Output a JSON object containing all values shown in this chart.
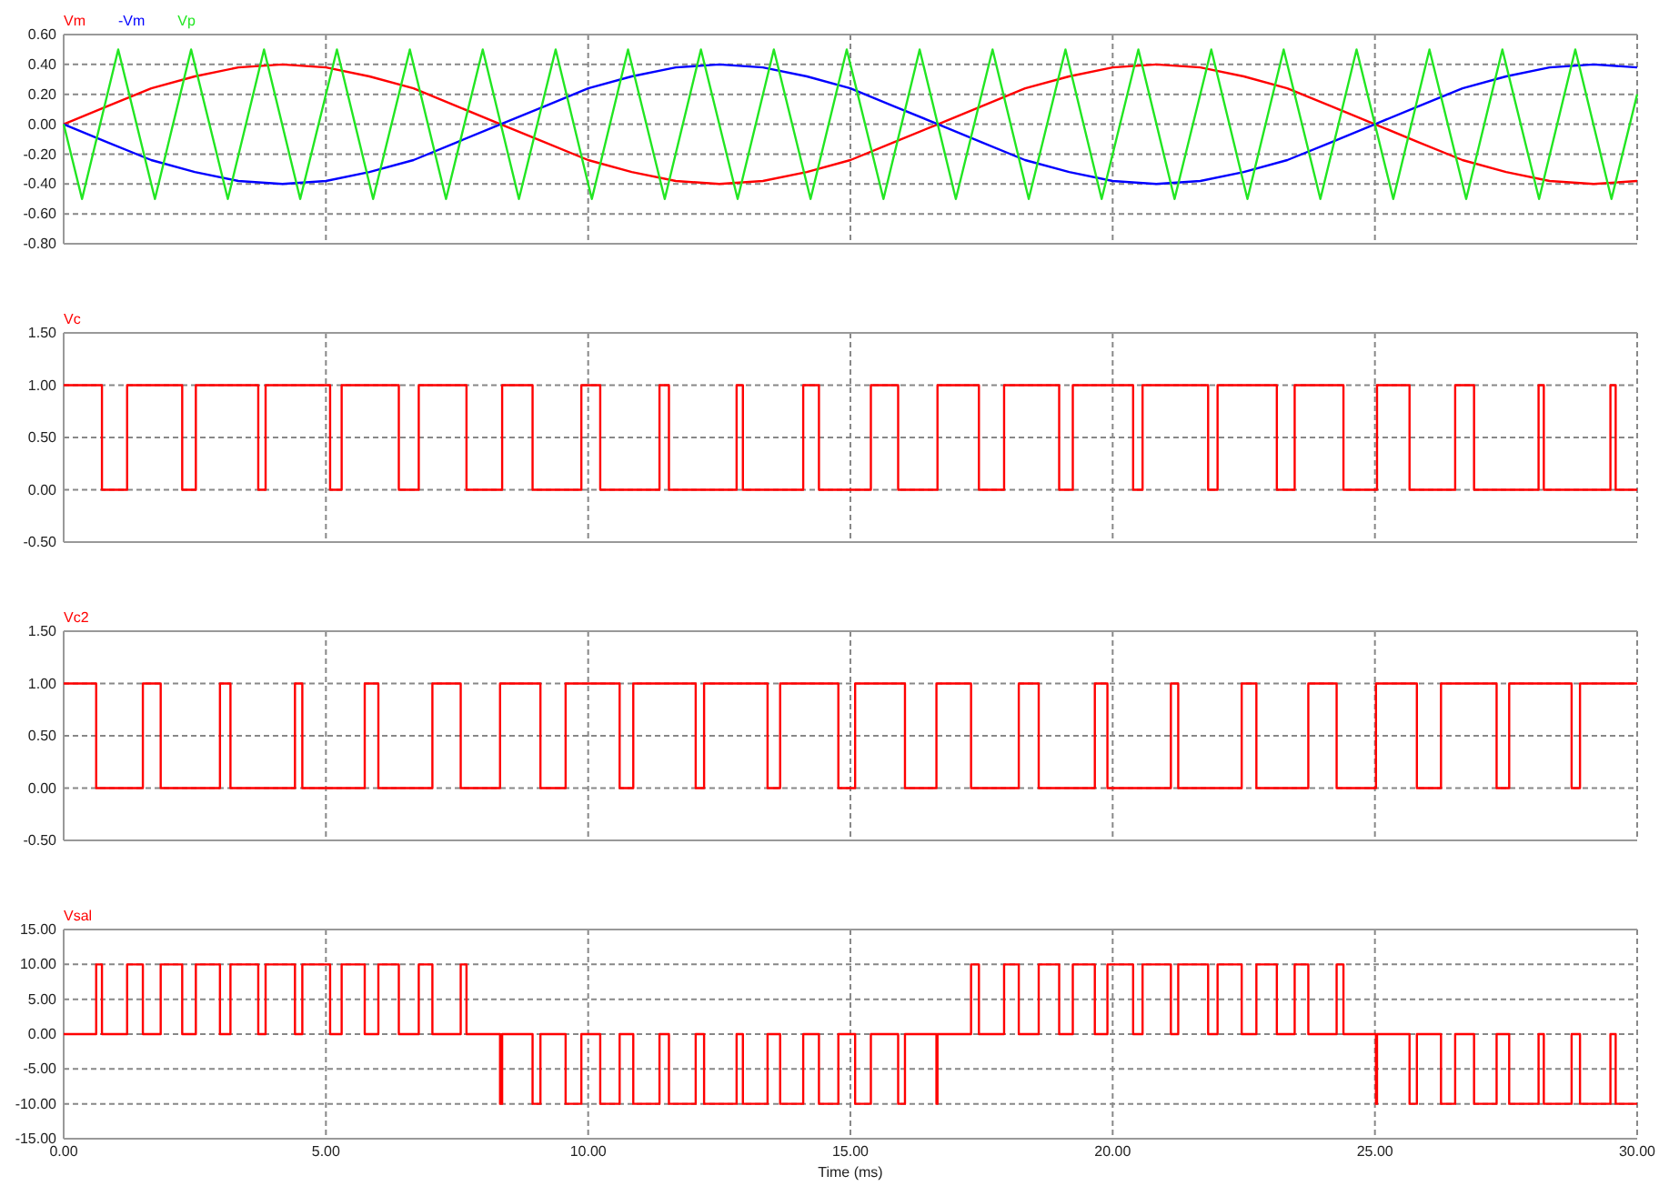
{
  "chart_data": [
    {
      "type": "line",
      "legend": "top left",
      "grid": true,
      "tick_labels": "y",
      "xlim": [
        0,
        30
      ],
      "xticks": [
        0,
        5,
        10,
        15,
        20,
        25,
        30
      ],
      "ylim": [
        -0.8,
        0.6
      ],
      "yticks": [
        {
          "value": -0.8,
          "label": "-0.80"
        },
        {
          "value": -0.6,
          "label": "-0.60"
        },
        {
          "value": -0.4,
          "label": "-0.40"
        },
        {
          "value": -0.2,
          "label": "-0.20"
        },
        {
          "value": 0,
          "label": "0.00"
        },
        {
          "value": 0.2,
          "label": "0.20"
        },
        {
          "value": 0.4,
          "label": "0.40"
        },
        {
          "value": 0.6,
          "label": "0.60"
        }
      ],
      "series": [
        {
          "name": "Vm",
          "color": "#ff0000",
          "x": [
            0,
            0.83,
            1.67,
            2.5,
            3.33,
            4.17,
            5,
            5.83,
            6.67,
            7.5,
            8.33,
            9.17,
            10,
            10.83,
            11.67,
            12.5,
            13.33,
            14.17,
            15,
            15.83,
            16.67,
            17.5,
            18.33,
            19.17,
            20,
            20.83,
            21.67,
            22.5,
            23.33,
            24.17,
            25,
            25.83,
            26.67,
            27.5,
            28.33,
            29.17,
            30
          ],
          "values": [
            0,
            0.12,
            0.24,
            0.32,
            0.38,
            0.4,
            0.38,
            0.32,
            0.24,
            0.12,
            0,
            -0.12,
            -0.24,
            -0.32,
            -0.38,
            -0.4,
            -0.38,
            -0.32,
            -0.24,
            -0.12,
            0,
            0.12,
            0.24,
            0.32,
            0.38,
            0.4,
            0.38,
            0.32,
            0.24,
            0.12,
            0,
            -0.12,
            -0.24,
            -0.32,
            -0.38,
            -0.4,
            -0.38
          ]
        },
        {
          "name": "-Vm",
          "color": "#0000ff",
          "x": [
            0,
            0.83,
            1.67,
            2.5,
            3.33,
            4.17,
            5,
            5.83,
            6.67,
            7.5,
            8.33,
            9.17,
            10,
            10.83,
            11.67,
            12.5,
            13.33,
            14.17,
            15,
            15.83,
            16.67,
            17.5,
            18.33,
            19.17,
            20,
            20.83,
            21.67,
            22.5,
            23.33,
            24.17,
            25,
            25.83,
            26.67,
            27.5,
            28.33,
            29.17,
            30
          ],
          "values": [
            0,
            -0.12,
            -0.24,
            -0.32,
            -0.38,
            -0.4,
            -0.38,
            -0.32,
            -0.24,
            -0.12,
            0,
            0.12,
            0.24,
            0.32,
            0.38,
            0.4,
            0.38,
            0.32,
            0.24,
            0.12,
            0,
            -0.12,
            -0.24,
            -0.32,
            -0.38,
            -0.4,
            -0.38,
            -0.32,
            -0.24,
            -0.12,
            0,
            0.12,
            0.24,
            0.32,
            0.38,
            0.4,
            0.38
          ]
        },
        {
          "name": "Vp",
          "color": "#22e622",
          "x": [
            0,
            0.35,
            1.04,
            1.74,
            2.43,
            3.13,
            3.82,
            4.51,
            5.21,
            5.9,
            6.6,
            7.29,
            7.99,
            8.68,
            9.38,
            10.07,
            10.76,
            11.46,
            12.15,
            12.85,
            13.54,
            14.24,
            14.93,
            15.63,
            16.32,
            17.01,
            17.71,
            18.4,
            19.1,
            19.79,
            20.49,
            21.18,
            21.88,
            22.57,
            23.26,
            23.96,
            24.65,
            25.35,
            26.04,
            26.74,
            27.43,
            28.13,
            28.82,
            29.51,
            30
          ],
          "values": [
            0,
            -0.5,
            0.5,
            -0.5,
            0.5,
            -0.5,
            0.5,
            -0.5,
            0.5,
            -0.5,
            0.5,
            -0.5,
            0.5,
            -0.5,
            0.5,
            -0.5,
            0.5,
            -0.5,
            0.5,
            -0.5,
            0.5,
            -0.5,
            0.5,
            -0.5,
            0.5,
            -0.5,
            0.5,
            -0.5,
            0.5,
            -0.5,
            0.5,
            -0.5,
            0.5,
            -0.5,
            0.5,
            -0.5,
            0.5,
            -0.5,
            0.5,
            -0.5,
            0.5,
            -0.5,
            0.5,
            -0.5,
            0.2
          ]
        }
      ]
    },
    {
      "type": "step",
      "legend": "top left",
      "grid": true,
      "tick_labels": "y",
      "xlim": [
        0,
        30
      ],
      "xticks": [
        0,
        5,
        10,
        15,
        20,
        25,
        30
      ],
      "ylim": [
        -0.5,
        1.5
      ],
      "yticks": [
        {
          "value": -0.5,
          "label": "-0.50"
        },
        {
          "value": 0,
          "label": "0.00"
        },
        {
          "value": 0.5,
          "label": "0.50"
        },
        {
          "value": 1,
          "label": "1.00"
        },
        {
          "value": 1.5,
          "label": "1.50"
        }
      ],
      "series": [
        {
          "name": "Vc",
          "color": "#ff0000",
          "x": [
            0,
            0.73,
            1.21,
            2.26,
            2.52,
            3.71,
            3.85,
            5.08,
            5.3,
            6.39,
            6.77,
            7.68,
            8.36,
            8.94,
            9.87,
            10.23,
            11.36,
            11.54,
            12.83,
            12.95,
            14.1,
            14.4,
            15.39,
            15.91,
            16.66,
            17.45,
            17.93,
            18.98,
            19.24,
            20.39,
            20.57,
            21.82,
            22,
            23.13,
            23.47,
            24.4,
            25.04,
            25.66,
            26.53,
            26.89,
            28.12,
            28.22,
            29.49,
            29.59,
            30
          ],
          "values": [
            1,
            0,
            1,
            0,
            1,
            0,
            1,
            0,
            1,
            0,
            1,
            0,
            1,
            0,
            1,
            0,
            1,
            0,
            1,
            0,
            1,
            0,
            1,
            0,
            1,
            0,
            1,
            0,
            1,
            0,
            1,
            0,
            1,
            0,
            1,
            0,
            1,
            0,
            1,
            0,
            1,
            0,
            1,
            0,
            0
          ]
        }
      ]
    },
    {
      "type": "step",
      "legend": "top left",
      "grid": true,
      "tick_labels": "y",
      "xlim": [
        0,
        30
      ],
      "xticks": [
        0,
        5,
        10,
        15,
        20,
        25,
        30
      ],
      "ylim": [
        -0.5,
        1.5
      ],
      "yticks": [
        {
          "value": -0.5,
          "label": "-0.50"
        },
        {
          "value": 0,
          "label": "0.00"
        },
        {
          "value": 0.5,
          "label": "0.50"
        },
        {
          "value": 1,
          "label": "1.00"
        },
        {
          "value": 1.5,
          "label": "1.50"
        }
      ],
      "series": [
        {
          "name": "Vc2",
          "color": "#ff0000",
          "x": [
            0,
            0.62,
            1.51,
            1.85,
            2.98,
            3.18,
            4.41,
            4.55,
            5.74,
            6,
            7.03,
            7.57,
            8.32,
            9.09,
            9.57,
            10.6,
            10.86,
            12.05,
            12.21,
            13.42,
            13.66,
            14.77,
            15.09,
            16.04,
            16.64,
            17.3,
            18.21,
            18.59,
            19.66,
            19.9,
            21.11,
            21.25,
            22.46,
            22.74,
            23.73,
            24.27,
            25.02,
            25.8,
            26.26,
            27.32,
            27.56,
            28.75,
            28.91,
            30
          ],
          "values": [
            1,
            0,
            1,
            0,
            1,
            0,
            1,
            0,
            1,
            0,
            1,
            0,
            1,
            0,
            1,
            0,
            1,
            0,
            1,
            0,
            1,
            0,
            1,
            0,
            1,
            0,
            1,
            0,
            1,
            0,
            1,
            0,
            1,
            0,
            1,
            0,
            1,
            0,
            1,
            0,
            1,
            0,
            1,
            1
          ]
        }
      ]
    },
    {
      "type": "step",
      "legend": "top left",
      "grid": true,
      "xlabel": "Time (ms)",
      "xlim": [
        0,
        30
      ],
      "xticks": [
        {
          "value": 0,
          "label": "0.00"
        },
        {
          "value": 5,
          "label": "5.00"
        },
        {
          "value": 10,
          "label": "10.00"
        },
        {
          "value": 15,
          "label": "15.00"
        },
        {
          "value": 20,
          "label": "20.00"
        },
        {
          "value": 25,
          "label": "25.00"
        },
        {
          "value": 30,
          "label": "30.00"
        }
      ],
      "ylim": [
        -15,
        15
      ],
      "yticks": [
        {
          "value": -15,
          "label": "-15.00"
        },
        {
          "value": -10,
          "label": "-10.00"
        },
        {
          "value": -5,
          "label": "-5.00"
        },
        {
          "value": 0,
          "label": "0.00"
        },
        {
          "value": 5,
          "label": "5.00"
        },
        {
          "value": 10,
          "label": "10.00"
        },
        {
          "value": 15,
          "label": "15.00"
        }
      ],
      "series": [
        {
          "name": "Vsal",
          "color": "#ff0000",
          "x": [
            0,
            0.62,
            0.73,
            1.21,
            1.51,
            1.85,
            2.26,
            2.52,
            2.98,
            3.18,
            3.71,
            3.85,
            4.41,
            4.55,
            5.08,
            5.3,
            5.74,
            6,
            6.39,
            6.77,
            7.03,
            7.57,
            7.68,
            8.32,
            8.36,
            8.94,
            9.09,
            9.57,
            9.87,
            10.23,
            10.6,
            10.86,
            11.36,
            11.54,
            12.05,
            12.21,
            12.83,
            12.95,
            13.42,
            13.66,
            14.1,
            14.4,
            14.77,
            15.09,
            15.39,
            15.91,
            16.04,
            16.64,
            16.66,
            17.3,
            17.45,
            17.93,
            18.21,
            18.59,
            18.98,
            19.24,
            19.66,
            19.9,
            20.39,
            20.57,
            21.11,
            21.25,
            21.82,
            22,
            22.46,
            22.74,
            23.13,
            23.47,
            23.73,
            24.27,
            24.4,
            25.02,
            25.04,
            25.66,
            25.8,
            26.26,
            26.53,
            26.89,
            27.32,
            27.56,
            28.12,
            28.22,
            28.75,
            28.91,
            29.49,
            29.59,
            30
          ],
          "values": [
            0,
            10,
            0,
            10,
            0,
            10,
            0,
            10,
            0,
            10,
            0,
            10,
            0,
            10,
            0,
            10,
            0,
            10,
            0,
            10,
            0,
            10,
            0,
            -10,
            0,
            -10,
            0,
            -10,
            0,
            -10,
            0,
            -10,
            0,
            -10,
            0,
            -10,
            0,
            -10,
            0,
            -10,
            0,
            -10,
            0,
            -10,
            0,
            -10,
            0,
            -10,
            0,
            10,
            0,
            10,
            0,
            10,
            0,
            10,
            0,
            10,
            0,
            10,
            0,
            10,
            0,
            10,
            0,
            10,
            0,
            10,
            0,
            10,
            0,
            -10,
            0,
            -10,
            0,
            -10,
            0,
            -10,
            0,
            -10,
            0,
            -10,
            0,
            -10,
            0,
            -10,
            -10
          ]
        }
      ]
    }
  ]
}
